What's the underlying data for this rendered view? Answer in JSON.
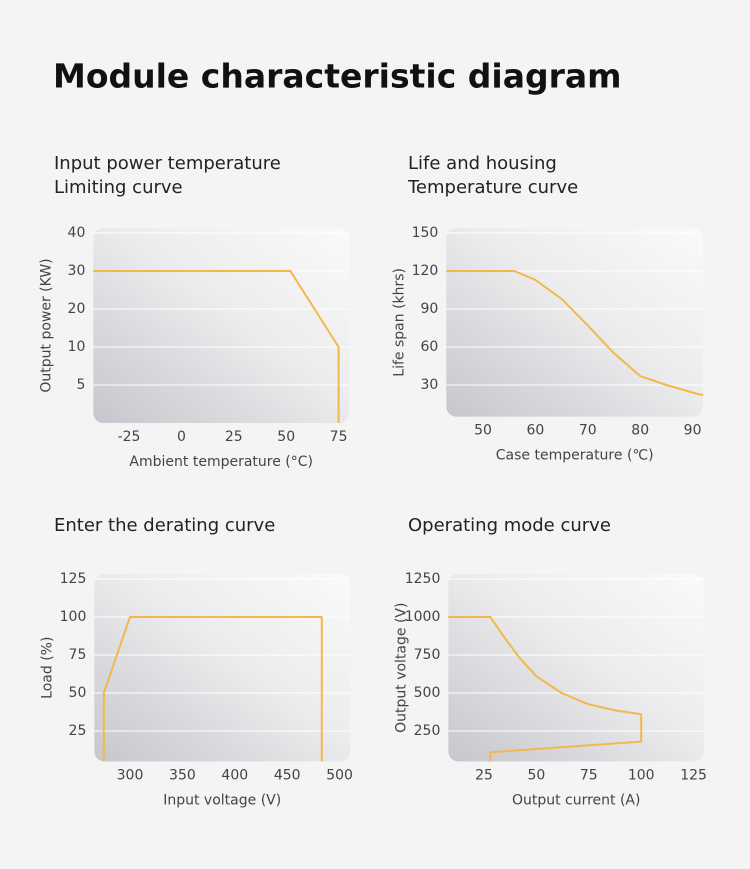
{
  "title": "Module characteristic diagram",
  "chart_data": [
    {
      "type": "line",
      "title": [
        "Input power temperature",
        "Limiting curve"
      ],
      "x_label": "Ambient temperature (°C)",
      "y_label": "Output power (KW)",
      "xlim": [
        -42,
        80
      ],
      "xticks": [
        -25,
        0,
        25,
        50,
        75
      ],
      "ylim": [
        0,
        40
      ],
      "yticks": [
        5,
        10,
        20,
        30,
        40
      ],
      "grid": true,
      "series": [
        {
          "color": "#f2b84b",
          "x": [
            -42,
            52,
            75,
            75
          ],
          "values": [
            30,
            30,
            10,
            0
          ]
        }
      ]
    },
    {
      "type": "line",
      "title": [
        "Life and housing",
        "Temperature curve"
      ],
      "x_label": "Case temperature (℃)",
      "y_label": "Life span (khrs)",
      "xlim": [
        43,
        92
      ],
      "xticks": [
        50,
        60,
        70,
        80,
        90
      ],
      "ylim": [
        5,
        150
      ],
      "yticks": [
        30,
        60,
        90,
        120,
        150
      ],
      "grid": true,
      "series": [
        {
          "color": "#f2b84b",
          "x": [
            43,
            56,
            60,
            65,
            70,
            75,
            80,
            85,
            90,
            92
          ],
          "values": [
            120,
            120,
            113,
            98,
            77,
            55,
            37,
            30,
            24,
            22
          ]
        }
      ]
    },
    {
      "type": "line",
      "title": [
        "Enter the derating curve"
      ],
      "x_label": "Input voltage (V)",
      "y_label": "Load (%)",
      "xlim": [
        266,
        510
      ],
      "xticks": [
        300,
        350,
        400,
        450,
        500
      ],
      "ylim": [
        5,
        125
      ],
      "yticks": [
        25,
        50,
        75,
        100,
        125
      ],
      "grid": true,
      "series": [
        {
          "color": "#f2b84b",
          "x": [
            275,
            275,
            300,
            483,
            483
          ],
          "values": [
            5,
            50,
            100,
            100,
            5
          ]
        }
      ]
    },
    {
      "type": "line",
      "title": [
        "Operating mode curve"
      ],
      "x_label": "Output current (A)",
      "y_label": "Output voltage (V)",
      "xlim": [
        8,
        130
      ],
      "xticks": [
        25,
        50,
        75,
        100,
        125
      ],
      "ylim": [
        50,
        1250
      ],
      "yticks": [
        250,
        500,
        750,
        1000,
        1250
      ],
      "grid": true,
      "series": [
        {
          "color": "#f2b84b",
          "x": [
            8,
            28,
            35,
            42,
            50,
            62,
            75,
            88,
            100,
            100,
            28,
            28
          ],
          "values": [
            1000,
            1000,
            860,
            730,
            610,
            500,
            425,
            385,
            360,
            180,
            110,
            50
          ]
        }
      ]
    }
  ]
}
